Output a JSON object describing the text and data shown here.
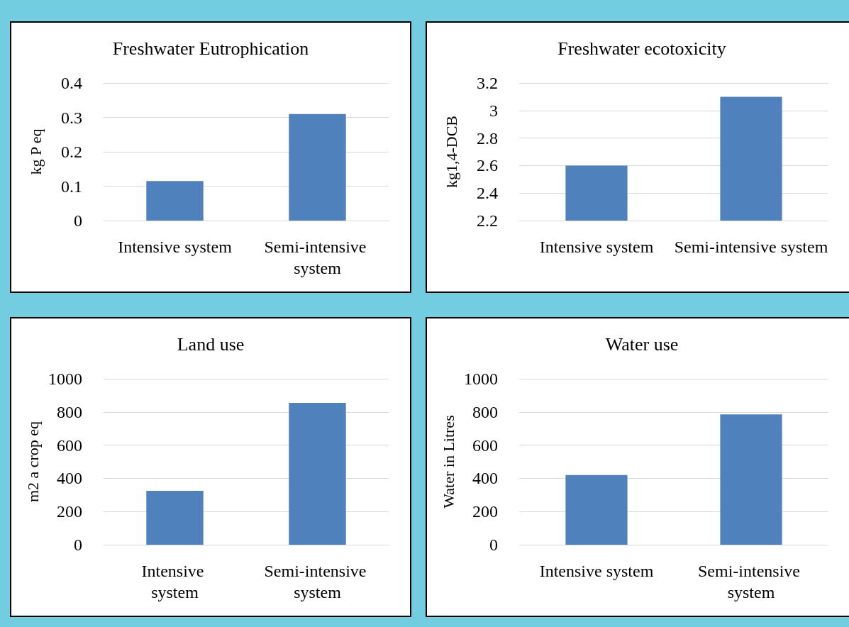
{
  "chart_data": [
    {
      "type": "bar",
      "title": "Freshwater Eutrophication",
      "ylabel": "kg P eq",
      "categories": [
        "Intensive system",
        "Semi-intensive system"
      ],
      "values": [
        0.115,
        0.31
      ],
      "color": "#4f81bd",
      "ylim": [
        0,
        0.4
      ],
      "yticks": [
        0,
        0.1,
        0.2,
        0.3,
        0.4
      ],
      "grid": "y"
    },
    {
      "type": "bar",
      "title": "Freshwater ecotoxicity",
      "ylabel": "kg1,4-DCB",
      "categories": [
        "Intensive system",
        "Semi-intensive system"
      ],
      "values": [
        2.6,
        3.1
      ],
      "color": "#4f81bd",
      "ylim": [
        2.2,
        3.2
      ],
      "yticks": [
        2.2,
        2.4,
        2.6,
        2.8,
        3,
        3.2
      ],
      "grid": "y"
    },
    {
      "type": "bar",
      "title": "Land use",
      "ylabel": "m2 a crop eq",
      "categories": [
        "Intensive system",
        "Semi-intensive system"
      ],
      "values": [
        325,
        855
      ],
      "color": "#4f81bd",
      "ylim": [
        0,
        1000
      ],
      "yticks": [
        0,
        200,
        400,
        600,
        800,
        1000
      ],
      "grid": "y"
    },
    {
      "type": "bar",
      "title": "Water use",
      "ylabel": "Water in Litres",
      "categories": [
        "Intensive system",
        "Semi-intensive system"
      ],
      "values": [
        420,
        785
      ],
      "color": "#4f81bd",
      "ylim": [
        0,
        1000
      ],
      "yticks": [
        0,
        200,
        400,
        600,
        800,
        1000
      ],
      "grid": "y"
    }
  ]
}
